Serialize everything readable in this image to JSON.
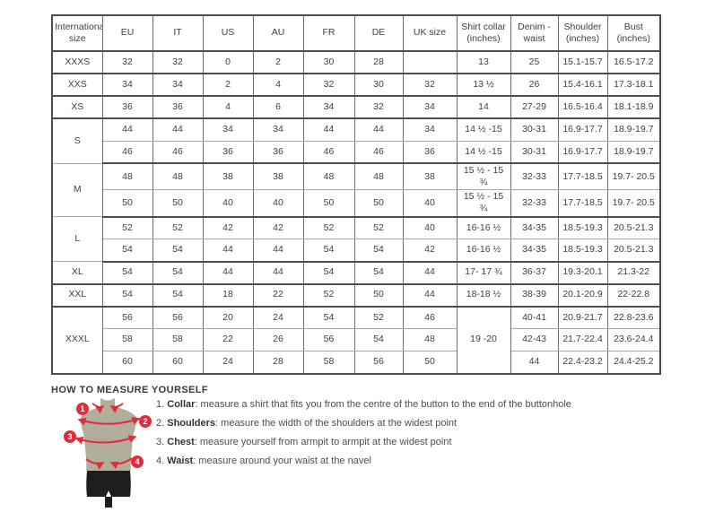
{
  "table": {
    "headers": [
      "International size",
      "EU",
      "IT",
      "US",
      "AU",
      "FR",
      "DE",
      "UK size",
      "Shirt collar (inches)",
      "Denim - waist",
      "Shoulder (inches)",
      "Bust (inches)"
    ],
    "rows": [
      {
        "cls": "group",
        "cells": [
          "XXXS",
          "32",
          "32",
          "0",
          "2",
          "30",
          "28",
          "",
          "13",
          "25",
          "15.1-15.7",
          "16.5-17.2"
        ]
      },
      {
        "cls": "group",
        "cells": [
          "XXS",
          "34",
          "34",
          "2",
          "4",
          "32",
          "30",
          "32",
          "13 ½",
          "26",
          "15.4-16.1",
          "17.3-18.1"
        ]
      },
      {
        "cls": "group",
        "cells": [
          "XS",
          "36",
          "36",
          "4",
          "6",
          "34",
          "32",
          "34",
          "14",
          "27-29",
          "16.5-16.4",
          "18.1-18.9"
        ]
      },
      {
        "cls": "sub",
        "cells": [
          {
            "t": "S",
            "rs": 2
          },
          "44",
          "44",
          "34",
          "34",
          "44",
          "44",
          "34",
          "14 ½ -15",
          "30-31",
          "16.9-17.7",
          "18.9-19.7"
        ]
      },
      {
        "cls": "group",
        "cells": [
          "46",
          "46",
          "36",
          "36",
          "46",
          "46",
          "36",
          "14 ½ -15",
          "30-31",
          "16.9-17.7",
          "18.9-19.7"
        ]
      },
      {
        "cls": "sub",
        "cells": [
          {
            "t": "M",
            "rs": 2
          },
          "48",
          "48",
          "38",
          "38",
          "48",
          "48",
          "38",
          "15 ½ - 15 ¾",
          "32-33",
          "17.7-18.5",
          "19.7- 20.5"
        ]
      },
      {
        "cls": "group",
        "cells": [
          "50",
          "50",
          "40",
          "40",
          "50",
          "50",
          "40",
          "15 ½ - 15 ¾",
          "32-33",
          "17.7-18.5",
          "19.7- 20.5"
        ]
      },
      {
        "cls": "sub",
        "cells": [
          {
            "t": "L",
            "rs": 2
          },
          "52",
          "52",
          "42",
          "42",
          "52",
          "52",
          "40",
          "16-16 ½",
          "34-35",
          "18.5-19.3",
          "20.5-21.3"
        ]
      },
      {
        "cls": "group",
        "cells": [
          "54",
          "54",
          "44",
          "44",
          "54",
          "54",
          "42",
          "16-16 ½",
          "34-35",
          "18.5-19.3",
          "20.5-21.3"
        ]
      },
      {
        "cls": "group",
        "cells": [
          "XL",
          "54",
          "54",
          "44",
          "44",
          "54",
          "54",
          "44",
          "17- 17 ¾",
          "36-37",
          "19.3-20.1",
          "21.3-22"
        ]
      },
      {
        "cls": "group",
        "cells": [
          "XXL",
          "54",
          "54",
          "18",
          "22",
          "52",
          "50",
          "44",
          "18-18 ½",
          "38-39",
          "20.1-20.9",
          "22-22.8"
        ]
      },
      {
        "cls": "sub",
        "cells": [
          {
            "t": "XXXL",
            "rs": 3
          },
          "56",
          "56",
          "20",
          "24",
          "54",
          "52",
          "46",
          {
            "t": "19 -20",
            "rs": 3
          },
          "40-41",
          "20.9-21.7",
          "22.8-23.6"
        ]
      },
      {
        "cls": "sub",
        "cells": [
          "58",
          "58",
          "22",
          "26",
          "56",
          "54",
          "48",
          "42-43",
          "21.7-22.4",
          "23.6-24.4"
        ]
      },
      {
        "cls": "group",
        "cells": [
          "60",
          "60",
          "24",
          "28",
          "58",
          "56",
          "50",
          "44",
          "22.4-23.2",
          "24.4-25.2"
        ]
      }
    ]
  },
  "measure": {
    "title": "HOW TO MEASURE YOURSELF",
    "markers": [
      "1",
      "2",
      "3",
      "4"
    ],
    "items": [
      {
        "num": "1.",
        "label": "Collar",
        "text": ": measure a shirt that fits you from the centre of the button to the end of the buttonhole"
      },
      {
        "num": "2.",
        "label": "Shoulders",
        "text": ": measure the width of the shoulders at the widest point"
      },
      {
        "num": "3.",
        "label": "Chest",
        "text": ": measure yourself from armpit to armpit at the widest point"
      },
      {
        "num": "4.",
        "label": "Waist",
        "text": ": measure around your waist at the navel"
      }
    ]
  },
  "colors": {
    "accent_red": "#e12c3c",
    "figure_olive": "#b2ae9c",
    "figure_shade": "#a5a08e",
    "shorts_black": "#1e1e1e",
    "border_dark": "#4d4d4d",
    "border_light": "#a9a9a9",
    "text": "#3f3f3f"
  }
}
